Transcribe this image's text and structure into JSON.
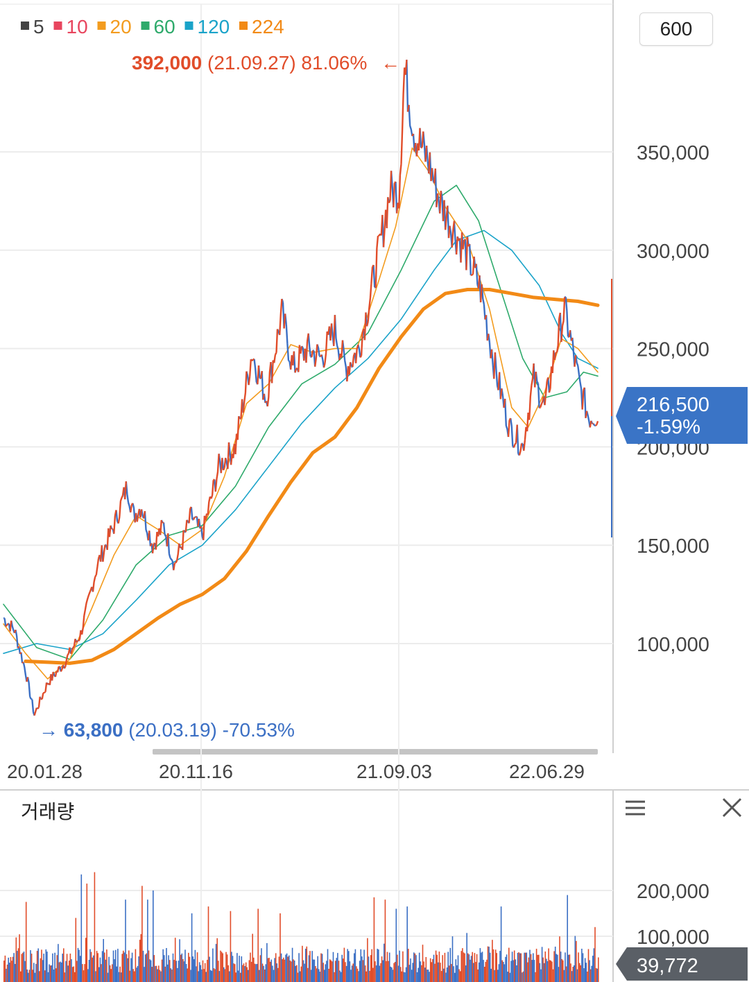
{
  "toolbar": {
    "period_count": "600"
  },
  "legend": [
    {
      "label": "5",
      "color": "#444444"
    },
    {
      "label": "10",
      "color": "#e8455e"
    },
    {
      "label": "20",
      "color": "#f39c1f"
    },
    {
      "label": "60",
      "color": "#2eaa6b"
    },
    {
      "label": "120",
      "color": "#1aa3c9"
    },
    {
      "label": "224",
      "color": "#f28a16"
    }
  ],
  "annotations": {
    "high": {
      "price": "392,000",
      "detail": "(21.09.27) 81.06%",
      "arrow": "←"
    },
    "low": {
      "arrow": "→",
      "price": "63,800",
      "detail": "(20.03.19) -70.53%"
    }
  },
  "current_price": {
    "price": "216,500",
    "change": "-1.59%"
  },
  "volume_panel": {
    "title": "거래량",
    "current_volume": "39,772"
  },
  "colors": {
    "up": "#e14d2a",
    "down": "#3b6fc4",
    "ma224": "#f28a16",
    "price_badge": "#3a74c6",
    "volume_badge": "#5a5f66"
  },
  "chart_data": [
    {
      "type": "line",
      "title": "",
      "x_tick_labels": [
        "20.01.28",
        "20.11.16",
        "21.09.03",
        "22.06.29"
      ],
      "y_tick_labels": [
        "350,000",
        "300,000",
        "250,000",
        "200,000",
        "150,000",
        "100,000"
      ],
      "ylim": [
        50000,
        400000
      ],
      "grid": true,
      "legend_position": "top-left",
      "series": [
        {
          "name": "5",
          "values": [
            [
              0,
              113000
            ],
            [
              10,
              107000
            ],
            [
              20,
              86000
            ],
            [
              28,
              63800
            ],
            [
              40,
              80000
            ],
            [
              55,
              90000
            ],
            [
              70,
              105000
            ],
            [
              85,
              140000
            ],
            [
              100,
              160000
            ],
            [
              112,
              180000
            ],
            [
              118,
              165000
            ],
            [
              125,
              170000
            ],
            [
              135,
              150000
            ],
            [
              145,
              160000
            ],
            [
              155,
              140000
            ],
            [
              170,
              165000
            ],
            [
              180,
              155000
            ],
            [
              195,
              190000
            ],
            [
              210,
              200000
            ],
            [
              225,
              248000
            ],
            [
              238,
              225000
            ],
            [
              252,
              268000
            ],
            [
              262,
              240000
            ],
            [
              275,
              250000
            ],
            [
              288,
              245000
            ],
            [
              300,
              260000
            ],
            [
              310,
              240000
            ],
            [
              322,
              250000
            ],
            [
              335,
              285000
            ],
            [
              350,
              330000
            ],
            [
              358,
              330000
            ],
            [
              363,
              392000
            ],
            [
              372,
              360000
            ],
            [
              385,
              345000
            ],
            [
              395,
              325000
            ],
            [
              408,
              310000
            ],
            [
              418,
              300000
            ],
            [
              432,
              280000
            ],
            [
              445,
              240000
            ],
            [
              458,
              210000
            ],
            [
              470,
              200000
            ],
            [
              480,
              235000
            ],
            [
              490,
              220000
            ],
            [
              500,
              250000
            ],
            [
              508,
              270000
            ],
            [
              515,
              250000
            ],
            [
              522,
              230000
            ],
            [
              530,
              215000
            ],
            [
              538,
              216500
            ]
          ]
        },
        {
          "name": "20",
          "values": [
            [
              0,
              110000
            ],
            [
              20,
              95000
            ],
            [
              40,
              82000
            ],
            [
              60,
              92000
            ],
            [
              80,
              118000
            ],
            [
              100,
              145000
            ],
            [
              120,
              165000
            ],
            [
              140,
              158000
            ],
            [
              160,
              150000
            ],
            [
              180,
              158000
            ],
            [
              200,
              185000
            ],
            [
              220,
              222000
            ],
            [
              240,
              232000
            ],
            [
              260,
              252000
            ],
            [
              280,
              248000
            ],
            [
              300,
              250000
            ],
            [
              320,
              250000
            ],
            [
              340,
              285000
            ],
            [
              355,
              312000
            ],
            [
              370,
              352000
            ],
            [
              385,
              340000
            ],
            [
              400,
              322000
            ],
            [
              420,
              305000
            ],
            [
              440,
              270000
            ],
            [
              460,
              220000
            ],
            [
              475,
              210000
            ],
            [
              490,
              228000
            ],
            [
              505,
              255000
            ],
            [
              520,
              250000
            ],
            [
              538,
              238000
            ]
          ]
        },
        {
          "name": "60",
          "values": [
            [
              0,
              120000
            ],
            [
              30,
              98000
            ],
            [
              60,
              92000
            ],
            [
              90,
              112000
            ],
            [
              120,
              140000
            ],
            [
              150,
              155000
            ],
            [
              180,
              160000
            ],
            [
              210,
              180000
            ],
            [
              240,
              210000
            ],
            [
              270,
              232000
            ],
            [
              300,
              242000
            ],
            [
              330,
              258000
            ],
            [
              360,
              290000
            ],
            [
              390,
              325000
            ],
            [
              410,
              333000
            ],
            [
              430,
              315000
            ],
            [
              450,
              280000
            ],
            [
              470,
              245000
            ],
            [
              490,
              225000
            ],
            [
              510,
              228000
            ],
            [
              525,
              238000
            ],
            [
              538,
              236000
            ]
          ]
        },
        {
          "name": "120",
          "values": [
            [
              0,
              95000
            ],
            [
              30,
              100000
            ],
            [
              60,
              97000
            ],
            [
              90,
              105000
            ],
            [
              120,
              122000
            ],
            [
              150,
              140000
            ],
            [
              180,
              150000
            ],
            [
              210,
              168000
            ],
            [
              240,
              190000
            ],
            [
              270,
              212000
            ],
            [
              300,
              230000
            ],
            [
              330,
              245000
            ],
            [
              360,
              265000
            ],
            [
              390,
              290000
            ],
            [
              410,
              305000
            ],
            [
              435,
              310000
            ],
            [
              460,
              300000
            ],
            [
              485,
              282000
            ],
            [
              505,
              258000
            ],
            [
              520,
              245000
            ],
            [
              538,
              240000
            ]
          ]
        },
        {
          "name": "224",
          "values": [
            [
              20,
              91000
            ],
            [
              40,
              90500
            ],
            [
              60,
              90000
            ],
            [
              80,
              91500
            ],
            [
              100,
              97000
            ],
            [
              120,
              105000
            ],
            [
              140,
              113000
            ],
            [
              160,
              120000
            ],
            [
              180,
              125000
            ],
            [
              200,
              133000
            ],
            [
              220,
              147000
            ],
            [
              240,
              165000
            ],
            [
              260,
              182000
            ],
            [
              280,
              197000
            ],
            [
              300,
              205000
            ],
            [
              320,
              220000
            ],
            [
              340,
              240000
            ],
            [
              360,
              256000
            ],
            [
              380,
              270000
            ],
            [
              400,
              278000
            ],
            [
              420,
              280000
            ],
            [
              440,
              280000
            ],
            [
              460,
              278000
            ],
            [
              480,
              276000
            ],
            [
              500,
              275000
            ],
            [
              520,
              274000
            ],
            [
              538,
              272000
            ]
          ]
        }
      ]
    },
    {
      "type": "bar",
      "title": "거래량",
      "y_tick_labels": [
        "200,000",
        "100,000"
      ],
      "ylim": [
        0,
        270000
      ],
      "peaks": [
        {
          "x": 20,
          "value": 175000
        },
        {
          "x": 65,
          "value": 140000
        },
        {
          "x": 70,
          "value": 235000
        },
        {
          "x": 75,
          "value": 215000
        },
        {
          "x": 82,
          "value": 240000
        },
        {
          "x": 110,
          "value": 180000
        },
        {
          "x": 125,
          "value": 210000
        },
        {
          "x": 130,
          "value": 180000
        },
        {
          "x": 135,
          "value": 200000
        },
        {
          "x": 170,
          "value": 150000
        },
        {
          "x": 185,
          "value": 165000
        },
        {
          "x": 205,
          "value": 155000
        },
        {
          "x": 230,
          "value": 160000
        },
        {
          "x": 250,
          "value": 150000
        },
        {
          "x": 335,
          "value": 185000
        },
        {
          "x": 345,
          "value": 180000
        },
        {
          "x": 355,
          "value": 160000
        },
        {
          "x": 365,
          "value": 165000
        },
        {
          "x": 450,
          "value": 165000
        },
        {
          "x": 510,
          "value": 190000
        },
        {
          "x": 535,
          "value": 120000
        }
      ]
    }
  ],
  "icons": {
    "menu": "menu-icon",
    "close": "close-icon"
  }
}
